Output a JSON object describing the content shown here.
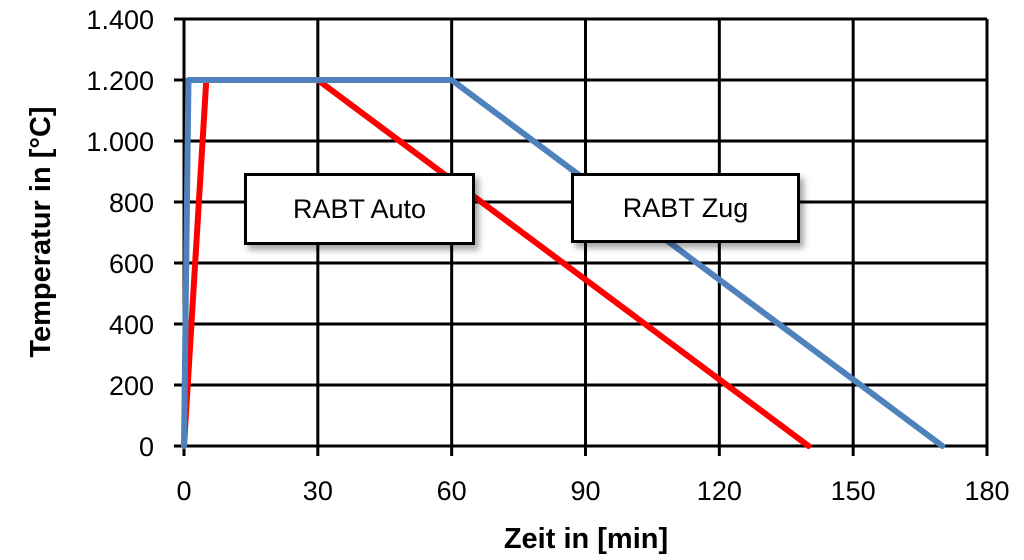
{
  "chart_data": {
    "type": "line",
    "title": "",
    "xlabel": "Zeit in [min]",
    "ylabel": "Temperatur in [°C]",
    "xlim": [
      0,
      180
    ],
    "ylim": [
      0,
      1400
    ],
    "xticks": [
      0,
      30,
      60,
      90,
      120,
      150,
      180
    ],
    "xtick_labels": [
      "0",
      "30",
      "60",
      "90",
      "120",
      "150",
      "180"
    ],
    "yticks": [
      0,
      200,
      400,
      600,
      800,
      1000,
      1200,
      1400
    ],
    "ytick_labels": [
      "0",
      "200",
      "400",
      "600",
      "800",
      "1.000",
      "1.200",
      "1.400"
    ],
    "grid": true,
    "legend": "inline text boxes",
    "series": [
      {
        "name": "RABT Auto",
        "color": "#ff0000",
        "x": [
          0,
          5,
          30,
          140
        ],
        "y": [
          0,
          1200,
          1200,
          0
        ]
      },
      {
        "name": "RABT Zug",
        "color": "#4f81bd",
        "x": [
          0,
          1,
          60,
          170
        ],
        "y": [
          0,
          1200,
          1200,
          0
        ]
      }
    ],
    "annotations": [
      {
        "text": "RABT Auto",
        "series": "RABT Auto"
      },
      {
        "text": "RABT Zug",
        "series": "RABT Zug"
      }
    ]
  }
}
